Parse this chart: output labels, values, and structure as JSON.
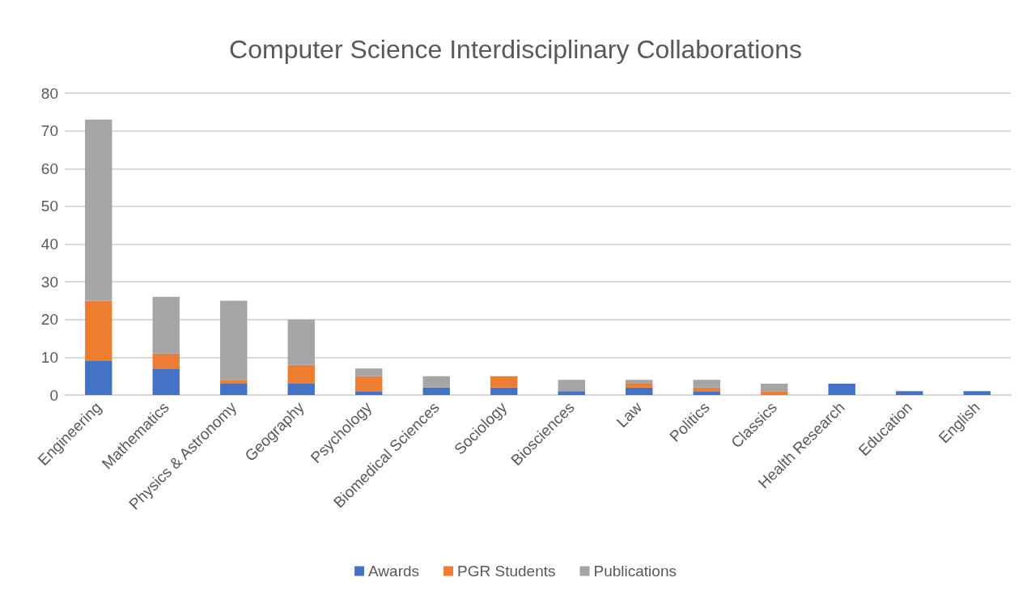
{
  "chart_data": {
    "type": "bar",
    "title": "Computer Science Interdisciplinary Collaborations",
    "stacked": true,
    "categories": [
      "Engineering",
      "Mathematics",
      "Physics & Astronomy",
      "Geography",
      "Psychology",
      "Biomedical Sciences",
      "Sociology",
      "Biosciences",
      "Law",
      "Politics",
      "Classics",
      "Health Research",
      "Education",
      "English"
    ],
    "series": [
      {
        "name": "Awards",
        "color": "#4472c4",
        "values": [
          9,
          7,
          3,
          3,
          1,
          2,
          2,
          1,
          2,
          1,
          0,
          3,
          1,
          1
        ]
      },
      {
        "name": "PGR Students",
        "color": "#ed7d31",
        "values": [
          16,
          4,
          1,
          5,
          4,
          0,
          3,
          0,
          1,
          1,
          1,
          0,
          0,
          0
        ]
      },
      {
        "name": "Publications",
        "color": "#a5a5a5",
        "values": [
          48,
          15,
          21,
          12,
          2,
          3,
          0,
          3,
          1,
          2,
          2,
          0,
          0,
          0
        ]
      }
    ],
    "ylim": [
      0,
      80
    ],
    "yticks": [
      0,
      10,
      20,
      30,
      40,
      50,
      60,
      70,
      80
    ],
    "grid": "y",
    "legend": "bottom"
  }
}
